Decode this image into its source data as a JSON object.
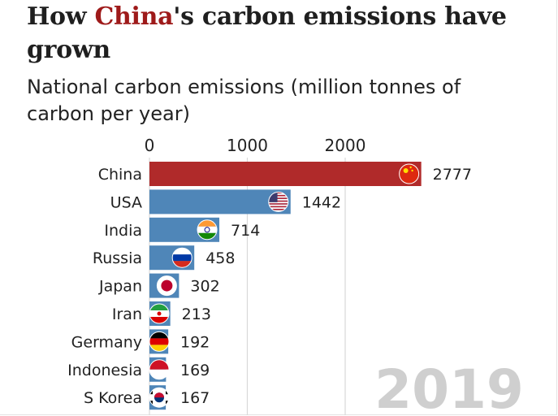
{
  "header": {
    "title_pre": "How ",
    "title_highlight": "China",
    "title_post": "'s carbon emissions have grown",
    "subtitle": "National carbon emissions (million tonnes of carbon per year)"
  },
  "colors": {
    "china_bar": "#b02a2a",
    "other_bar": "#4f86b8",
    "gridline": "#d9d9d9",
    "title_highlight": "#9e1a1a",
    "year_label": "#cfcfcf"
  },
  "chart_data": {
    "type": "bar",
    "orientation": "horizontal",
    "year": "2019",
    "categories": [
      "China",
      "USA",
      "India",
      "Russia",
      "Japan",
      "Iran",
      "Germany",
      "Indonesia",
      "S Korea"
    ],
    "values": [
      2777,
      1442,
      714,
      458,
      302,
      213,
      192,
      169,
      167
    ],
    "value_labels": [
      "2777",
      "1442",
      "714",
      "458",
      "302",
      "213",
      "192",
      "169",
      "167"
    ],
    "flags": [
      "china-flag-icon",
      "usa-flag-icon",
      "india-flag-icon",
      "russia-flag-icon",
      "japan-flag-icon",
      "iran-flag-icon",
      "germany-flag-icon",
      "indonesia-flag-icon",
      "south-korea-flag-icon"
    ],
    "xticks": [
      0,
      1000,
      2000
    ],
    "xtick_labels": [
      "0",
      "1000",
      "2000"
    ],
    "xlim": [
      0,
      3000
    ],
    "grid": true,
    "axis_position": "top"
  }
}
